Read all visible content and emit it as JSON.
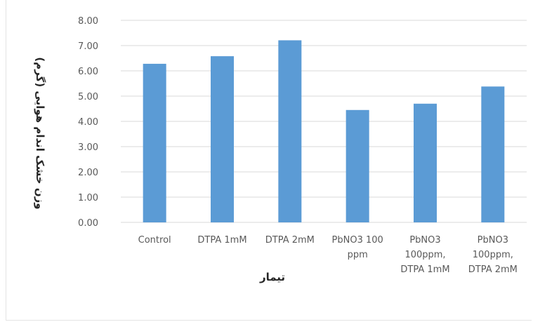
{
  "chart_data": {
    "type": "bar",
    "categories": [
      [
        "Control"
      ],
      [
        "DTPA 1mM"
      ],
      [
        "DTPA 2mM"
      ],
      [
        "PbNO3 100",
        "ppm"
      ],
      [
        "PbNO3",
        "100ppm,",
        "DTPA 1mM"
      ],
      [
        "PbNO3",
        "100ppm,",
        "DTPA 2mM"
      ]
    ],
    "values": [
      6.28,
      6.58,
      7.21,
      4.45,
      4.7,
      5.38
    ],
    "y_ticks": [
      "0.00",
      "1.00",
      "2.00",
      "3.00",
      "4.00",
      "5.00",
      "6.00",
      "7.00",
      "8.00"
    ],
    "ylim": [
      0,
      8
    ],
    "xlabel": "تیمار",
    "ylabel": "وزن خشک اندام هوایی (گرم)",
    "grid": true,
    "bar_color": "#5b9bd5",
    "grid_color": "#d9d9d9",
    "legend": "none"
  }
}
